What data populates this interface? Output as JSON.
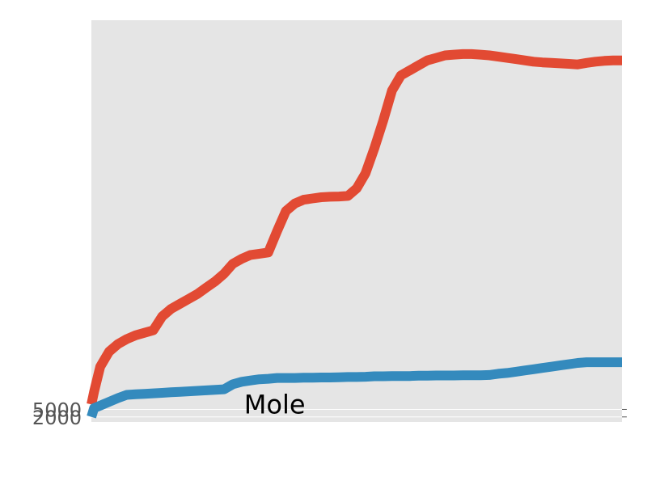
{
  "chart_data": {
    "type": "line",
    "title": "",
    "xlabel": "",
    "ylabel": "",
    "grid": true,
    "x": [
      0,
      0.3,
      1,
      2,
      3,
      4,
      5,
      6,
      7,
      8,
      9,
      10,
      11,
      12,
      13,
      14,
      15,
      16,
      17,
      18,
      19,
      20,
      21,
      22,
      23,
      24,
      25,
      26,
      27,
      28,
      29,
      30,
      31,
      32,
      33,
      34,
      35,
      36,
      37,
      38,
      39,
      40,
      41,
      42,
      43,
      44,
      45,
      46,
      47,
      48,
      49,
      50,
      51,
      52,
      53,
      54,
      55,
      56,
      57,
      58,
      59,
      60
    ],
    "xlim": [
      0,
      60
    ],
    "ylim": [
      0,
      160000
    ],
    "yticks": [
      2000,
      5000
    ],
    "series": [
      {
        "color": "#E24A33",
        "values": [
          7000,
          12000,
          22000,
          28000,
          31000,
          33000,
          34500,
          35500,
          36500,
          42000,
          45000,
          47000,
          49000,
          51000,
          53500,
          56000,
          59000,
          63000,
          65000,
          66500,
          67000,
          67500,
          76000,
          84000,
          87000,
          88500,
          89000,
          89500,
          89700,
          89800,
          90000,
          93000,
          99000,
          109000,
          120000,
          132000,
          138000,
          140000,
          142000,
          144000,
          145000,
          146000,
          146300,
          146500,
          146500,
          146300,
          146000,
          145500,
          145000,
          144500,
          144000,
          143500,
          143200,
          143000,
          142800,
          142600,
          142400,
          143000,
          143500,
          143800,
          144000,
          144000
        ]
      },
      {
        "color": "#348ABD",
        "values": [
          2000,
          5500,
          6500,
          8000,
          9500,
          10800,
          11000,
          11200,
          11400,
          11600,
          11800,
          12000,
          12200,
          12400,
          12600,
          12800,
          13000,
          15000,
          16000,
          16500,
          17000,
          17200,
          17500,
          17500,
          17500,
          17600,
          17600,
          17700,
          17700,
          17800,
          17900,
          17900,
          18000,
          18200,
          18200,
          18300,
          18300,
          18300,
          18400,
          18400,
          18500,
          18500,
          18500,
          18600,
          18600,
          18600,
          18700,
          19200,
          19500,
          20000,
          20500,
          21000,
          21500,
          22000,
          22500,
          23000,
          23500,
          23800,
          23800,
          23800,
          23800,
          23800
        ]
      }
    ],
    "annotations": [
      {
        "text": "Mole",
        "x": 18,
        "y": 6000
      }
    ]
  }
}
